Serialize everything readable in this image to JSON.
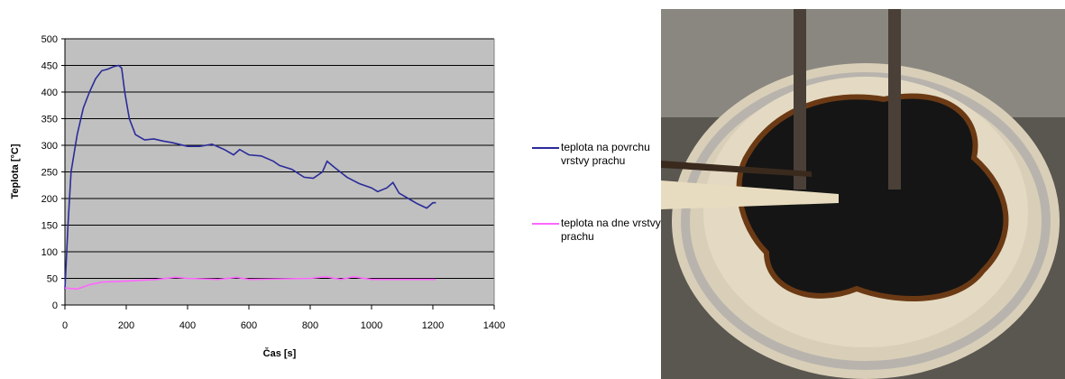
{
  "chart_data": {
    "type": "line",
    "x_label": "Čas [s]",
    "y_label": "Teplota [°C]",
    "xlim": [
      0,
      1400
    ],
    "xticks": [
      0,
      200,
      400,
      600,
      800,
      1000,
      1200,
      1400
    ],
    "ylim": [
      0,
      500
    ],
    "yticks": [
      0,
      50,
      100,
      150,
      200,
      250,
      300,
      350,
      400,
      450,
      500
    ],
    "grid": true,
    "legend": "right",
    "series": [
      {
        "name": "teplota na povrchu vrstvy prachu",
        "color": "#2b2b9a",
        "x": [
          0,
          10,
          20,
          40,
          60,
          80,
          100,
          120,
          140,
          160,
          175,
          185,
          195,
          210,
          230,
          260,
          290,
          320,
          350,
          400,
          440,
          480,
          520,
          550,
          570,
          600,
          640,
          680,
          700,
          740,
          780,
          810,
          840,
          855,
          880,
          920,
          960,
          1000,
          1020,
          1050,
          1070,
          1090,
          1120,
          1150,
          1180,
          1200,
          1210
        ],
        "values": [
          30,
          150,
          250,
          320,
          370,
          400,
          425,
          440,
          443,
          448,
          450,
          445,
          400,
          350,
          320,
          310,
          312,
          308,
          305,
          298,
          298,
          302,
          292,
          282,
          292,
          282,
          280,
          270,
          262,
          255,
          240,
          238,
          250,
          270,
          258,
          240,
          228,
          220,
          213,
          220,
          230,
          210,
          200,
          190,
          182,
          192,
          192
        ]
      },
      {
        "name": "teplota na dne vrstvy prachu",
        "color": "#ff66ff",
        "x": [
          0,
          40,
          80,
          120,
          200,
          300,
          360,
          400,
          500,
          560,
          600,
          800,
          850,
          900,
          940,
          1000,
          1210
        ],
        "values": [
          32,
          30,
          38,
          43,
          45,
          48,
          52,
          50,
          48,
          52,
          48,
          50,
          53,
          48,
          53,
          48,
          48
        ]
      }
    ]
  }
}
